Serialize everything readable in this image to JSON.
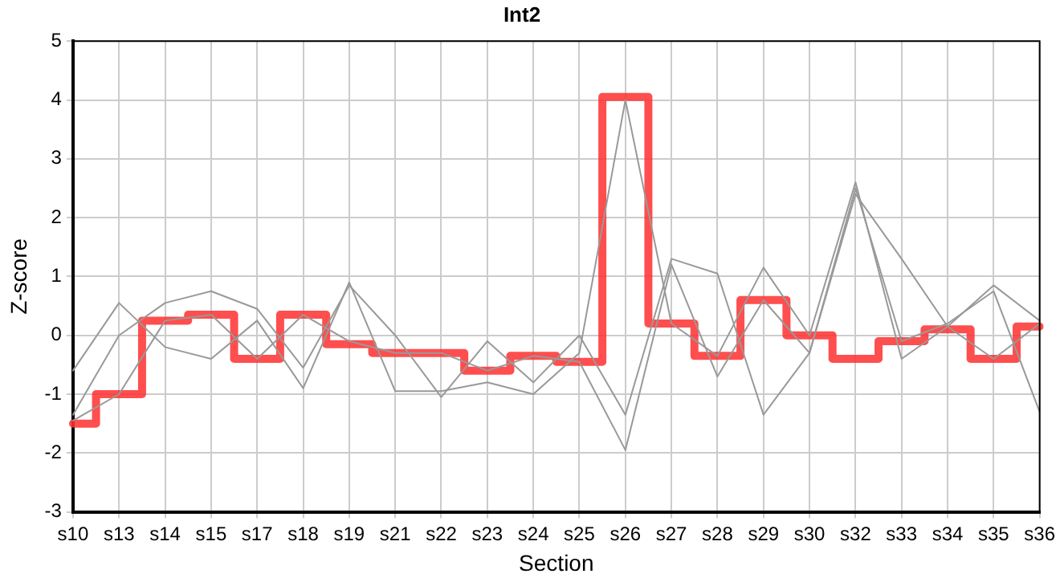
{
  "chart_data": {
    "type": "line",
    "title": "Int2",
    "xlabel": "Section",
    "ylabel": "Z-score",
    "categories": [
      "s10",
      "s13",
      "s14",
      "s15",
      "s17",
      "s18",
      "s19",
      "s21",
      "s22",
      "s23",
      "s24",
      "s25",
      "s26",
      "s27",
      "s28",
      "s29",
      "s30",
      "s32",
      "s33",
      "s34",
      "s35",
      "s36"
    ],
    "series": [
      {
        "type": "line",
        "color": "#999999",
        "values": [
          -0.6,
          0.55,
          -0.2,
          -0.4,
          0.25,
          -0.9,
          0.9,
          -0.95,
          -0.95,
          -0.8,
          -1.0,
          -0.3,
          4.0,
          0.2,
          -0.35,
          1.15,
          0.0,
          2.6,
          -0.4,
          0.15,
          0.85,
          0.25
        ]
      },
      {
        "type": "line",
        "color": "#999999",
        "values": [
          -1.35,
          0.0,
          0.55,
          0.75,
          0.45,
          -0.55,
          0.85,
          0.0,
          -1.05,
          -0.1,
          -0.8,
          0.0,
          -1.35,
          1.3,
          1.05,
          -1.35,
          -0.3,
          2.4,
          1.3,
          0.15,
          -0.4,
          0.2
        ]
      },
      {
        "type": "line",
        "color": "#999999",
        "values": [
          -1.45,
          -1.0,
          0.25,
          0.35,
          -0.4,
          0.35,
          -0.1,
          -0.3,
          -0.3,
          -0.6,
          -0.35,
          -0.45,
          -1.95,
          1.2,
          -0.7,
          0.6,
          -0.3,
          2.5,
          -0.1,
          0.2,
          0.75,
          -1.3
        ]
      },
      {
        "type": "step",
        "color": "#ff3333",
        "values": [
          -1.5,
          -1.0,
          0.25,
          0.35,
          -0.4,
          0.35,
          -0.15,
          -0.3,
          -0.3,
          -0.6,
          -0.35,
          -0.45,
          4.05,
          0.2,
          -0.35,
          0.6,
          0.0,
          -0.4,
          -0.1,
          0.1,
          -0.4,
          0.15
        ]
      }
    ],
    "ylim": [
      -3,
      5
    ],
    "yticks": [
      -3,
      -2,
      -1,
      0,
      1,
      2,
      3,
      4,
      5
    ],
    "grid": true,
    "legend": false
  }
}
